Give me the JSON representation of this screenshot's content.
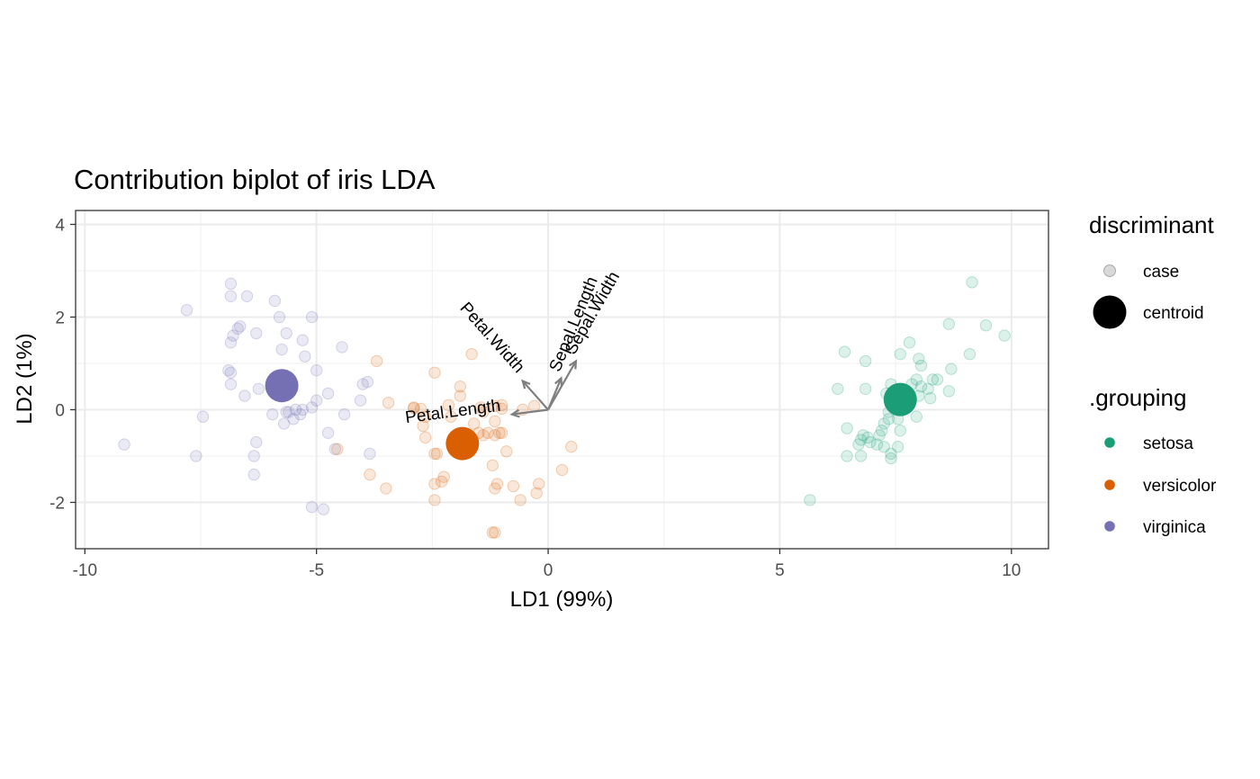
{
  "chart_data": {
    "type": "scatter",
    "title": "Contribution biplot of iris LDA",
    "xlabel": "LD1 (99%)",
    "ylabel": "LD2 (1%)",
    "xlim": [
      -10.2,
      10.8
    ],
    "ylim": [
      -3.0,
      4.3
    ],
    "x_ticks": [
      -10,
      -5,
      0,
      5,
      10
    ],
    "y_ticks": [
      -2,
      0,
      2,
      4
    ],
    "grid": true,
    "legend_position": "right",
    "legends": [
      {
        "title": "discriminant",
        "entries": [
          {
            "label": "case",
            "kind": "case"
          },
          {
            "label": "centroid",
            "kind": "centroid"
          }
        ]
      },
      {
        "title": ".grouping",
        "entries": [
          {
            "label": "setosa",
            "color": "#1b9e77"
          },
          {
            "label": "versicolor",
            "color": "#d95f02"
          },
          {
            "label": "virginica",
            "color": "#7570b3"
          }
        ]
      }
    ],
    "series": [
      {
        "name": "setosa",
        "color": "#1b9e77",
        "centroid": [
          7.6,
          0.22
        ],
        "cases": [
          [
            9.15,
            2.75
          ],
          [
            8.65,
            1.85
          ],
          [
            9.45,
            1.82
          ],
          [
            9.85,
            1.6
          ],
          [
            9.1,
            1.2
          ],
          [
            6.4,
            1.25
          ],
          [
            7.8,
            1.45
          ],
          [
            7.6,
            1.2
          ],
          [
            6.85,
            1.05
          ],
          [
            8.0,
            1.1
          ],
          [
            8.05,
            0.95
          ],
          [
            8.7,
            0.88
          ],
          [
            8.3,
            0.65
          ],
          [
            8.4,
            0.65
          ],
          [
            7.95,
            0.65
          ],
          [
            7.4,
            0.55
          ],
          [
            7.85,
            0.55
          ],
          [
            8.05,
            0.5
          ],
          [
            8.65,
            0.4
          ],
          [
            8.2,
            0.45
          ],
          [
            6.85,
            0.45
          ],
          [
            6.25,
            0.45
          ],
          [
            7.5,
            0.35
          ],
          [
            7.3,
            0.35
          ],
          [
            8.0,
            0.3
          ],
          [
            7.7,
            0.25
          ],
          [
            8.25,
            0.25
          ],
          [
            7.45,
            0.1
          ],
          [
            7.35,
            -0.05
          ],
          [
            7.95,
            -0.15
          ],
          [
            7.35,
            -0.2
          ],
          [
            7.55,
            -0.2
          ],
          [
            7.25,
            -0.3
          ],
          [
            6.45,
            -0.4
          ],
          [
            7.2,
            -0.45
          ],
          [
            7.6,
            -0.45
          ],
          [
            6.8,
            -0.55
          ],
          [
            6.9,
            -0.6
          ],
          [
            6.75,
            -0.65
          ],
          [
            6.95,
            -0.7
          ],
          [
            6.7,
            -0.75
          ],
          [
            7.1,
            -0.75
          ],
          [
            7.25,
            -0.8
          ],
          [
            7.55,
            -0.8
          ],
          [
            7.4,
            -0.95
          ],
          [
            6.45,
            -1.0
          ],
          [
            6.75,
            -1.0
          ],
          [
            7.4,
            -1.05
          ],
          [
            5.65,
            -1.95
          ],
          [
            7.15,
            -0.55
          ]
        ]
      },
      {
        "name": "versicolor",
        "color": "#d95f02",
        "centroid": [
          -1.85,
          -0.73
        ],
        "cases": [
          [
            -1.65,
            1.2
          ],
          [
            -3.7,
            1.05
          ],
          [
            -2.45,
            0.8
          ],
          [
            -1.9,
            0.5
          ],
          [
            -1.9,
            0.3
          ],
          [
            -3.45,
            0.15
          ],
          [
            -2.15,
            0.1
          ],
          [
            -1.0,
            0.1
          ],
          [
            -1.15,
            0.08
          ],
          [
            -0.3,
            0.08
          ],
          [
            -1.45,
            0.05
          ],
          [
            -2.9,
            0.03
          ],
          [
            -2.75,
            0.02
          ],
          [
            -1.0,
            0.02
          ],
          [
            -1.4,
            -0.05
          ],
          [
            -2.65,
            -0.15
          ],
          [
            -1.15,
            -0.25
          ],
          [
            -2.7,
            -0.35
          ],
          [
            -1.5,
            -0.5
          ],
          [
            -1.3,
            -0.5
          ],
          [
            -1.0,
            -0.5
          ],
          [
            -1.15,
            -0.55
          ],
          [
            -1.4,
            -0.55
          ],
          [
            -2.65,
            -0.6
          ],
          [
            0.5,
            -0.8
          ],
          [
            -4.55,
            -0.85
          ],
          [
            -0.9,
            -0.9
          ],
          [
            -2.4,
            -0.95
          ],
          [
            -2.45,
            -0.95
          ],
          [
            -1.2,
            -1.2
          ],
          [
            0.3,
            -1.3
          ],
          [
            -3.85,
            -1.4
          ],
          [
            -2.25,
            -1.45
          ],
          [
            -2.3,
            -1.55
          ],
          [
            -2.45,
            -1.6
          ],
          [
            -1.1,
            -1.6
          ],
          [
            -0.2,
            -1.6
          ],
          [
            -1.15,
            -1.7
          ],
          [
            -0.75,
            -1.65
          ],
          [
            -3.5,
            -1.7
          ],
          [
            -0.25,
            -1.8
          ],
          [
            -2.45,
            -1.95
          ],
          [
            -0.6,
            -1.95
          ],
          [
            -1.2,
            -2.65
          ],
          [
            -1.15,
            -2.65
          ],
          [
            -2.1,
            -0.15
          ],
          [
            -0.55,
            0.0
          ],
          [
            -1.6,
            -0.3
          ],
          [
            -2.9,
            0.05
          ],
          [
            -1.05,
            -0.5
          ]
        ]
      },
      {
        "name": "virginica",
        "color": "#7570b3",
        "centroid": [
          -5.75,
          0.52
        ],
        "cases": [
          [
            -6.85,
            2.72
          ],
          [
            -6.85,
            2.45
          ],
          [
            -6.5,
            2.45
          ],
          [
            -5.9,
            2.35
          ],
          [
            -7.8,
            2.15
          ],
          [
            -5.8,
            2.0
          ],
          [
            -5.1,
            2.0
          ],
          [
            -6.65,
            1.8
          ],
          [
            -6.7,
            1.75
          ],
          [
            -5.65,
            1.65
          ],
          [
            -6.3,
            1.65
          ],
          [
            -6.8,
            1.6
          ],
          [
            -5.3,
            1.5
          ],
          [
            -6.85,
            1.45
          ],
          [
            -4.45,
            1.35
          ],
          [
            -5.75,
            1.3
          ],
          [
            -5.25,
            1.15
          ],
          [
            -5.0,
            0.85
          ],
          [
            -6.9,
            0.85
          ],
          [
            -6.85,
            0.8
          ],
          [
            -5.6,
            0.65
          ],
          [
            -3.9,
            0.6
          ],
          [
            -4.0,
            0.55
          ],
          [
            -6.85,
            0.55
          ],
          [
            -6.55,
            0.3
          ],
          [
            -4.75,
            0.35
          ],
          [
            -4.05,
            0.2
          ],
          [
            -5.0,
            0.2
          ],
          [
            -5.1,
            0.05
          ],
          [
            -5.3,
            0.0
          ],
          [
            -5.6,
            -0.05
          ],
          [
            -5.65,
            -0.05
          ],
          [
            -5.95,
            -0.1
          ],
          [
            -4.4,
            -0.1
          ],
          [
            -7.45,
            -0.15
          ],
          [
            -5.5,
            -0.2
          ],
          [
            -5.7,
            -0.3
          ],
          [
            -4.75,
            -0.5
          ],
          [
            -6.3,
            -0.7
          ],
          [
            -9.15,
            -0.75
          ],
          [
            -4.6,
            -0.85
          ],
          [
            -3.85,
            -0.95
          ],
          [
            -7.6,
            -1.0
          ],
          [
            -6.35,
            -1.0
          ],
          [
            -6.35,
            -1.4
          ],
          [
            -5.1,
            -2.1
          ],
          [
            -4.85,
            -2.15
          ],
          [
            -6.25,
            0.45
          ],
          [
            -5.45,
            0.0
          ],
          [
            -5.35,
            -0.1
          ]
        ]
      }
    ],
    "arrows": [
      {
        "label": "Sepal.Length",
        "end": [
          0.28,
          0.68
        ]
      },
      {
        "label": "Sepal.Width",
        "end": [
          0.6,
          1.05
        ]
      },
      {
        "label": "Petal.Width",
        "end": [
          -0.55,
          0.62
        ]
      },
      {
        "label": "Petal.Length",
        "end": [
          -0.78,
          -0.1
        ]
      }
    ]
  }
}
